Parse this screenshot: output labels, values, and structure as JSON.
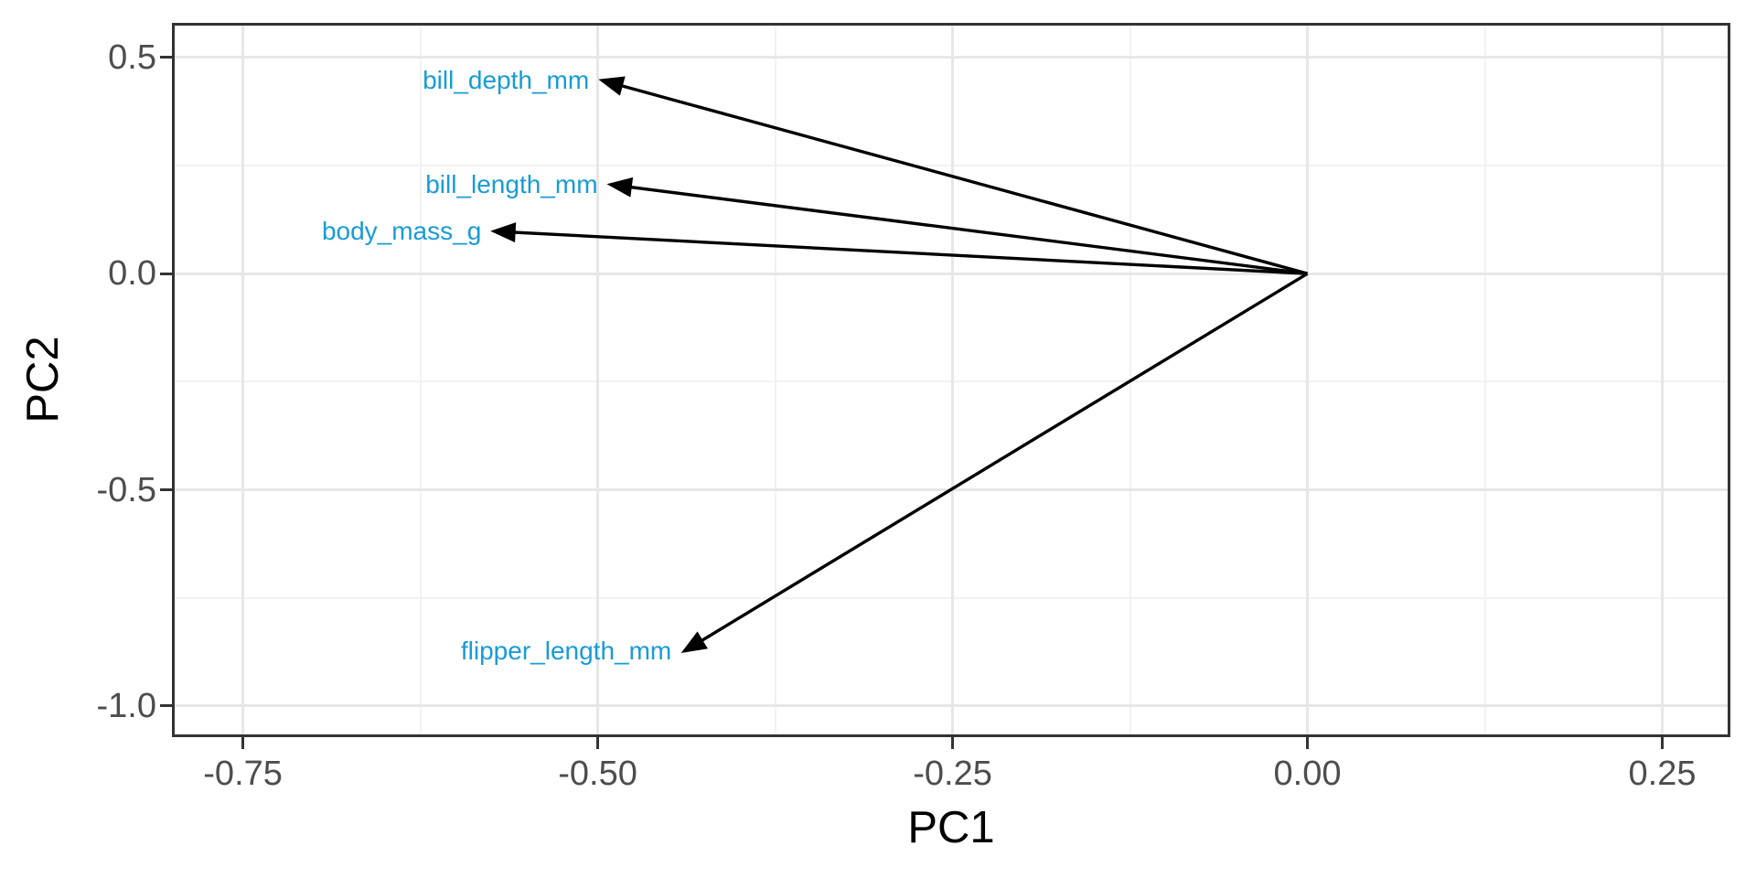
{
  "chart_data": {
    "type": "scatter",
    "subtype": "pca-loadings-biplot",
    "title": "",
    "xlabel": "PC1",
    "ylabel": "PC2",
    "xlim": [
      -0.8,
      0.298
    ],
    "ylim": [
      -1.072,
      0.58
    ],
    "grid": true,
    "legend": false,
    "origin": [
      0,
      0
    ],
    "x_major_ticks": {
      "values": [
        -0.75,
        -0.5,
        -0.25,
        0,
        0.25
      ],
      "labels": [
        "-0.75",
        "-0.50",
        "-0.25",
        "0.00",
        "0.25"
      ]
    },
    "x_minor_ticks": [
      -0.625,
      -0.375,
      -0.125,
      0.125
    ],
    "y_major_ticks": {
      "values": [
        0.5,
        0,
        -0.5,
        -1.0
      ],
      "labels": [
        "0.5",
        "0.0",
        "-0.5",
        "-1.0"
      ]
    },
    "y_minor_ticks": [
      0.25,
      -0.25,
      -0.75
    ],
    "loadings": [
      {
        "name": "bill_depth_mm",
        "pc1": -0.497,
        "pc2": 0.447
      },
      {
        "name": "bill_length_mm",
        "pc1": -0.491,
        "pc2": 0.206
      },
      {
        "name": "body_mass_g",
        "pc1": -0.573,
        "pc2": 0.098
      },
      {
        "name": "flipper_length_mm",
        "pc1": -0.439,
        "pc2": -0.873
      }
    ]
  },
  "colors": {
    "label_blue": "#189BD6",
    "arrow": "#000000",
    "grid_major": "#E7E7E7",
    "grid_minor": "#F2F2F2",
    "panel_border": "#333333",
    "tick_text": "#4D4D4D",
    "axis_title": "#000000",
    "background": "#FFFFFF"
  }
}
